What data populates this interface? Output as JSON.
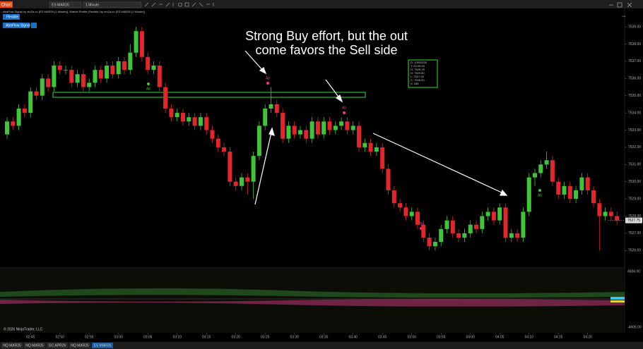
{
  "toolbar": {
    "app_button": "Chart",
    "instrument": "ES MAR26",
    "interval": "1 Minute"
  },
  "indicator_line": "AboFlow Signal by ninZa.co (ES MAR26 (1 Minute)), Market Profile (Flexible) by ninZa.co (ES MAR26 (1 Minute))",
  "buttons": [
    "Flexible",
    "AboFlow Signal"
  ],
  "annotation": [
    "Strong Buy effort, but the out",
    "come favors the Sell side"
  ],
  "info_box": [
    "D: 1/30/2026",
    "T: 03:49:00",
    "O: 7529.25",
    "H: 7529.50",
    "L: 7527.00",
    "C: 7528.00",
    "V: 185"
  ],
  "markers": [
    "Ab",
    "Ab",
    "Ab",
    "Ab",
    "Ab"
  ],
  "chart": {
    "ylim": [
      7525.07,
      7540.07
    ],
    "yticks": [
      {
        "value": 7539,
        "label": "7539.00"
      },
      {
        "value": 7538,
        "label": "7538.00"
      },
      {
        "value": 7537,
        "label": "7537.00"
      },
      {
        "value": 7536,
        "label": "7536.00"
      },
      {
        "value": 7535,
        "label": "7535.00"
      },
      {
        "value": 7534,
        "label": "7534.00"
      },
      {
        "value": 7533,
        "label": "7533.00"
      },
      {
        "value": 7532,
        "label": "7532.00"
      },
      {
        "value": 7531,
        "label": "7531.00"
      },
      {
        "value": 7530,
        "label": "7530.00"
      },
      {
        "value": 7529,
        "label": "7529.00"
      },
      {
        "value": 7528,
        "label": "7528.00"
      },
      {
        "value": 7527,
        "label": "7527.00"
      },
      {
        "value": 7526,
        "label": "7526.00"
      }
    ],
    "current_price": {
      "value": 7527.75,
      "label": "7527.75"
    },
    "time_labels": [
      "02:45",
      "02:50",
      "02:55",
      "03:00",
      "03:05",
      "03:10",
      "03:15",
      "03:20",
      "03:25",
      "03:30",
      "03:35",
      "03:40",
      "03:45",
      "03:50",
      "03:55",
      "04:00",
      "04:05",
      "04:10",
      "04:15",
      "04:20"
    ],
    "candles": [
      [
        7532.75,
        7533.75,
        7532.5,
        7533.5
      ],
      [
        7533.5,
        7533.75,
        7533.0,
        7533.25
      ],
      [
        7533.25,
        7534.5,
        7533.0,
        7534.25
      ],
      [
        7534.25,
        7534.5,
        7533.75,
        7534.0
      ],
      [
        7534.0,
        7535.5,
        7533.75,
        7535.25
      ],
      [
        7535.25,
        7535.5,
        7534.75,
        7535.0
      ],
      [
        7535.0,
        7536.25,
        7534.75,
        7536.0
      ],
      [
        7536.0,
        7536.25,
        7535.25,
        7535.5
      ],
      [
        7535.5,
        7537.0,
        7535.25,
        7536.75
      ],
      [
        7536.75,
        7537.0,
        7536.25,
        7536.5
      ],
      [
        7536.5,
        7536.75,
        7536.25,
        7536.5
      ],
      [
        7536.5,
        7536.75,
        7535.5,
        7535.75
      ],
      [
        7535.75,
        7536.5,
        7535.5,
        7536.25
      ],
      [
        7536.25,
        7536.5,
        7535.25,
        7535.5
      ],
      [
        7535.5,
        7536.0,
        7535.25,
        7535.75
      ],
      [
        7535.75,
        7536.75,
        7535.5,
        7536.5
      ],
      [
        7536.5,
        7536.75,
        7535.75,
        7536.0
      ],
      [
        7536.0,
        7537.0,
        7535.75,
        7536.75
      ],
      [
        7536.75,
        7537.0,
        7536.0,
        7536.25
      ],
      [
        7536.25,
        7537.25,
        7536.0,
        7537.0
      ],
      [
        7537.0,
        7537.25,
        7536.25,
        7536.5
      ],
      [
        7536.5,
        7538.0,
        7536.25,
        7537.5
      ],
      [
        7537.5,
        7539.0,
        7537.25,
        7538.75
      ],
      [
        7538.75,
        7539.0,
        7537.0,
        7537.25
      ],
      [
        7537.25,
        7537.5,
        7536.25,
        7536.5
      ],
      [
        7536.5,
        7537.0,
        7536.25,
        7536.75
      ],
      [
        7536.75,
        7537.0,
        7535.25,
        7535.5
      ],
      [
        7535.5,
        7535.75,
        7534.0,
        7534.25
      ],
      [
        7534.25,
        7534.5,
        7533.5,
        7533.75
      ],
      [
        7533.75,
        7534.25,
        7533.5,
        7534.0
      ],
      [
        7534.0,
        7534.25,
        7533.25,
        7533.5
      ],
      [
        7533.5,
        7534.0,
        7533.25,
        7533.75
      ],
      [
        7533.75,
        7534.0,
        7533.0,
        7533.25
      ],
      [
        7533.25,
        7534.0,
        7533.0,
        7533.75
      ],
      [
        7533.75,
        7534.0,
        7532.75,
        7533.0
      ],
      [
        7533.0,
        7533.25,
        7532.25,
        7532.5
      ],
      [
        7532.5,
        7532.75,
        7531.75,
        7532.0
      ],
      [
        7532.0,
        7532.25,
        7531.5,
        7531.75
      ],
      [
        7531.75,
        7532.0,
        7529.75,
        7530.0
      ],
      [
        7530.0,
        7530.25,
        7529.5,
        7529.75
      ],
      [
        7529.75,
        7530.5,
        7529.5,
        7530.25
      ],
      [
        7530.25,
        7530.5,
        7529.25,
        7530.0
      ],
      [
        7530.0,
        7531.75,
        7529.0,
        7531.5
      ],
      [
        7531.5,
        7533.5,
        7531.25,
        7533.25
      ],
      [
        7533.25,
        7534.5,
        7533.0,
        7534.25
      ],
      [
        7534.25,
        7535.5,
        7534.0,
        7534.5
      ],
      [
        7534.5,
        7534.75,
        7533.75,
        7534.0
      ],
      [
        7534.0,
        7534.25,
        7532.25,
        7532.5
      ],
      [
        7532.5,
        7533.5,
        7532.25,
        7533.25
      ],
      [
        7533.25,
        7533.5,
        7532.5,
        7532.75
      ],
      [
        7532.75,
        7533.25,
        7532.5,
        7533.0
      ],
      [
        7533.0,
        7533.25,
        7532.25,
        7532.5
      ],
      [
        7532.5,
        7533.75,
        7532.25,
        7533.5
      ],
      [
        7533.5,
        7533.75,
        7532.5,
        7532.75
      ],
      [
        7532.75,
        7533.75,
        7532.5,
        7533.5
      ],
      [
        7533.5,
        7533.75,
        7532.75,
        7533.0
      ],
      [
        7533.0,
        7533.5,
        7532.75,
        7533.25
      ],
      [
        7533.25,
        7533.75,
        7533.0,
        7533.5
      ],
      [
        7533.5,
        7533.75,
        7532.75,
        7533.0
      ],
      [
        7533.0,
        7533.5,
        7532.75,
        7533.25
      ],
      [
        7533.25,
        7533.5,
        7531.75,
        7532.0
      ],
      [
        7532.0,
        7532.5,
        7531.75,
        7532.25
      ],
      [
        7532.25,
        7532.5,
        7531.5,
        7531.75
      ],
      [
        7531.75,
        7532.25,
        7531.5,
        7532.0
      ],
      [
        7532.0,
        7532.25,
        7530.5,
        7530.75
      ],
      [
        7530.75,
        7531.0,
        7529.25,
        7529.5
      ],
      [
        7529.5,
        7529.75,
        7528.5,
        7528.75
      ],
      [
        7528.75,
        7529.0,
        7528.25,
        7528.5
      ],
      [
        7528.5,
        7528.75,
        7527.75,
        7528.0
      ],
      [
        7528.0,
        7528.5,
        7527.75,
        7528.25
      ],
      [
        7528.25,
        7528.5,
        7527.25,
        7527.5
      ],
      [
        7527.5,
        7527.75,
        7526.5,
        7526.75
      ],
      [
        7526.75,
        7527.0,
        7526.0,
        7526.25
      ],
      [
        7526.25,
        7526.75,
        7526.0,
        7526.5
      ],
      [
        7526.5,
        7527.5,
        7526.25,
        7527.25
      ],
      [
        7527.25,
        7528.0,
        7527.0,
        7527.75
      ],
      [
        7527.75,
        7528.0,
        7526.75,
        7527.0
      ],
      [
        7527.0,
        7527.25,
        7526.5,
        7526.75
      ],
      [
        7526.75,
        7527.25,
        7526.5,
        7527.0
      ],
      [
        7527.0,
        7527.75,
        7526.75,
        7527.5
      ],
      [
        7527.5,
        7527.75,
        7527.0,
        7527.25
      ],
      [
        7527.25,
        7528.25,
        7527.0,
        7528.0
      ],
      [
        7528.0,
        7528.5,
        7527.75,
        7528.25
      ],
      [
        7528.25,
        7528.5,
        7527.5,
        7527.75
      ],
      [
        7527.75,
        7528.75,
        7527.5,
        7528.5
      ],
      [
        7528.5,
        7528.75,
        7526.5,
        7526.75
      ],
      [
        7526.75,
        7527.25,
        7526.5,
        7527.0
      ],
      [
        7527.0,
        7527.25,
        7526.5,
        7526.75
      ],
      [
        7526.75,
        7528.5,
        7526.5,
        7528.25
      ],
      [
        7528.25,
        7530.5,
        7528.0,
        7530.25
      ],
      [
        7530.25,
        7530.75,
        7529.75,
        7530.5
      ],
      [
        7530.5,
        7531.25,
        7530.25,
        7531.0
      ],
      [
        7531.0,
        7531.75,
        7530.75,
        7531.25
      ],
      [
        7531.25,
        7531.5,
        7529.75,
        7530.0
      ],
      [
        7530.0,
        7530.25,
        7529.0,
        7529.25
      ],
      [
        7529.25,
        7530.0,
        7529.0,
        7529.75
      ],
      [
        7529.75,
        7530.0,
        7528.75,
        7529.0
      ],
      [
        7529.0,
        7529.75,
        7528.75,
        7529.5
      ],
      [
        7529.5,
        7530.5,
        7529.25,
        7530.25
      ],
      [
        7530.25,
        7530.5,
        7529.25,
        7529.5
      ],
      [
        7529.5,
        7529.75,
        7528.5,
        7528.75
      ],
      [
        7528.75,
        7529.0,
        7526.0,
        7528.0
      ],
      [
        7528.0,
        7528.5,
        7527.75,
        7528.25
      ],
      [
        7528.25,
        7528.5,
        7527.75,
        7528.0
      ],
      [
        7528.0,
        7528.25,
        7527.5,
        7527.75
      ]
    ],
    "up_color": "#3fc43a",
    "down_color": "#e3262b"
  },
  "lower_panel": {
    "labels": [
      "4606.00",
      "-4606.00"
    ]
  },
  "copyright": "© 2026 NinjaTrader, LLC",
  "tabs": [
    "NQ MAR26",
    "NQ MAR26",
    "GC APR26",
    "NQ MAR26",
    "ES MAR26"
  ]
}
